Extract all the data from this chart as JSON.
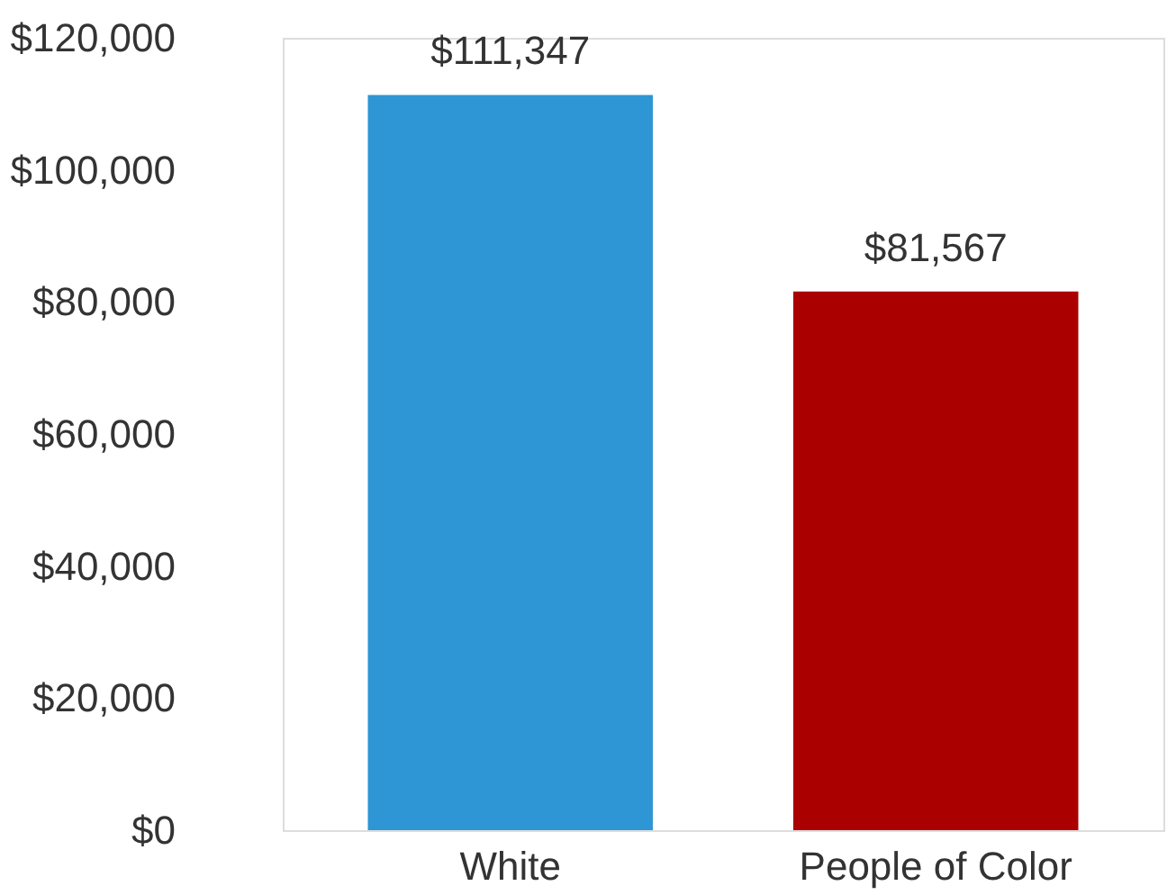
{
  "chart_data": {
    "type": "bar",
    "categories": [
      "White",
      "People of Color"
    ],
    "values": [
      111347,
      81567
    ],
    "colors": [
      "#2e96d4",
      "#aa0000"
    ],
    "value_labels": [
      "$111,347",
      "$81,567"
    ],
    "ylim": [
      0,
      120000
    ],
    "yticks": [
      {
        "value": 0,
        "label": "$0"
      },
      {
        "value": 20000,
        "label": "$20,000"
      },
      {
        "value": 40000,
        "label": "$40,000"
      },
      {
        "value": 60000,
        "label": "$60,000"
      },
      {
        "value": 80000,
        "label": "$80,000"
      },
      {
        "value": 100000,
        "label": "$100,000"
      },
      {
        "value": 120000,
        "label": "$120,000"
      }
    ],
    "grid": false
  }
}
